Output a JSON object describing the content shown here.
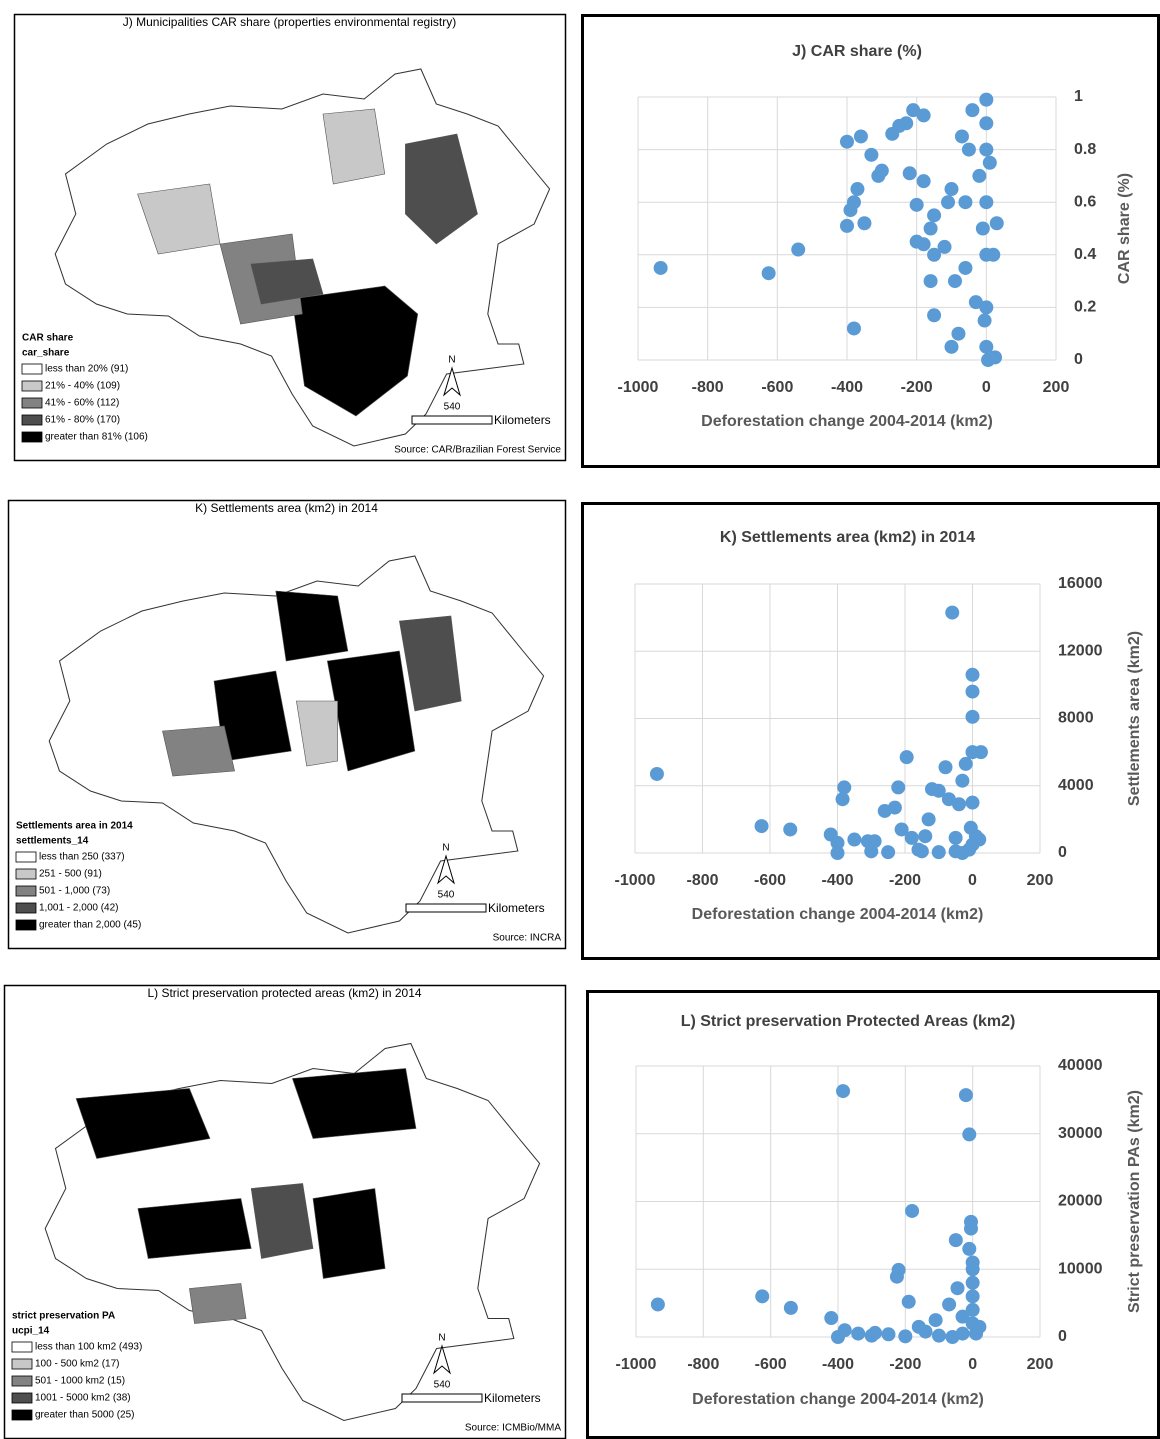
{
  "maps": [
    {
      "title": "J) Municipalities CAR share (properties environmental registry)",
      "legend_title": "CAR share",
      "legend_field": "car_share",
      "legend_items": [
        "less than 20% (91)",
        "21% - 40% (109)",
        "41% - 60% (112)",
        "61% - 80% (170)",
        "greater than 81% (106)"
      ],
      "north": "N",
      "scale": "540",
      "scale_unit": "Kilometers",
      "source": "Source: CAR/Brazilian Forest Service"
    },
    {
      "title": "K) Settlements area (km2) in 2014",
      "legend_title": "Settlements area in 2014",
      "legend_field": "settlements_14",
      "legend_items": [
        "less than 250 (337)",
        "251 - 500 (91)",
        "501 - 1,000 (73)",
        "1,001 - 2,000 (42)",
        "greater than 2,000 (45)"
      ],
      "north": "N",
      "scale": "540",
      "scale_unit": "Kilometers",
      "source": "Source: INCRA"
    },
    {
      "title": "L) Strict preservation protected areas (km2) in 2014",
      "legend_title": "strict preservation PA",
      "legend_field": "ucpi_14",
      "legend_items": [
        "less than 100 km2 (493)",
        "100 - 500 km2 (17)",
        "501 - 1000 km2 (15)",
        "1001 - 5000 km2 (38)",
        "greater than 5000 (25)"
      ],
      "north": "N",
      "scale": "540",
      "scale_unit": "Kilometers",
      "source": "Source: ICMBio/MMA"
    }
  ],
  "chart_data": [
    {
      "type": "scatter",
      "title": "J) CAR share (%)",
      "x_label": "Deforestation change 2004-2014 (km2)",
      "y_label": "CAR share (%)",
      "xlim": [
        -1000,
        200
      ],
      "xticks": [
        -1000,
        -800,
        -600,
        -400,
        -200,
        0,
        200
      ],
      "ylim": [
        0,
        1
      ],
      "yticks": [
        0,
        0.2,
        0.4,
        0.6,
        0.8,
        1
      ],
      "grid": true,
      "series": [
        {
          "color": "#5b9bd5",
          "x": [
            -935,
            -625,
            -540,
            -380,
            -400,
            -360,
            -330,
            -300,
            -370,
            -380,
            -390,
            -400,
            -350,
            -310,
            -270,
            -250,
            -230,
            -210,
            -180,
            -200,
            -200,
            -180,
            -160,
            -150,
            -220,
            -180,
            -160,
            -150,
            -150,
            -120,
            -110,
            -100,
            -90,
            -80,
            -100,
            -60,
            -50,
            -40,
            -30,
            -20,
            -10,
            0,
            0,
            0,
            0,
            0,
            0,
            0,
            5,
            10,
            20,
            30,
            25,
            -5,
            -60,
            -70
          ],
          "y": [
            0.35,
            0.33,
            0.42,
            0.12,
            0.83,
            0.85,
            0.78,
            0.72,
            0.65,
            0.6,
            0.57,
            0.51,
            0.52,
            0.7,
            0.86,
            0.89,
            0.9,
            0.95,
            0.93,
            0.59,
            0.45,
            0.44,
            0.5,
            0.55,
            0.71,
            0.68,
            0.3,
            0.4,
            0.17,
            0.43,
            0.6,
            0.65,
            0.3,
            0.1,
            0.05,
            0.35,
            0.8,
            0.95,
            0.22,
            0.7,
            0.5,
            0.99,
            0.9,
            0.8,
            0.6,
            0.4,
            0.2,
            0.05,
            0,
            0.75,
            0.4,
            0.52,
            0.01,
            0.15,
            0.6,
            0.85
          ]
        }
      ]
    },
    {
      "type": "scatter",
      "title": "K) Settlements area (km2) in 2014",
      "x_label": "Deforestation change 2004-2014 (km2)",
      "y_label": "Settlements area (km2)",
      "xlim": [
        -1000,
        200
      ],
      "xticks": [
        -1000,
        -800,
        -600,
        -400,
        -200,
        0,
        200
      ],
      "ylim": [
        0,
        16000
      ],
      "yticks": [
        0,
        4000,
        8000,
        12000,
        16000
      ],
      "grid": true,
      "series": [
        {
          "color": "#5b9bd5",
          "x": [
            -935,
            -625,
            -540,
            -420,
            -400,
            -380,
            -385,
            -350,
            -310,
            -290,
            -260,
            -230,
            -220,
            -210,
            -195,
            -180,
            -160,
            -140,
            -130,
            -120,
            -100,
            -80,
            -70,
            -60,
            -50,
            -40,
            -30,
            -20,
            -10,
            -5,
            0,
            0,
            0,
            0,
            0,
            0,
            10,
            25,
            20,
            -400,
            -300,
            -250,
            -150,
            -100,
            -50,
            -30
          ],
          "y": [
            4700,
            1600,
            1400,
            1100,
            600,
            3900,
            3200,
            800,
            700,
            700,
            2500,
            2700,
            3900,
            1400,
            5700,
            900,
            200,
            1000,
            2000,
            3800,
            3700,
            5100,
            3200,
            14300,
            900,
            2900,
            4300,
            5300,
            200,
            1500,
            10600,
            9600,
            8100,
            6000,
            3000,
            500,
            1000,
            6000,
            800,
            0,
            100,
            50,
            100,
            50,
            100,
            0
          ]
        }
      ]
    },
    {
      "type": "scatter",
      "title": "L) Strict preservation Protected Areas (km2)",
      "x_label": "Deforestation change 2004-2014 (km2)",
      "y_label": "Strict preservation PAs (km2)",
      "xlim": [
        -1000,
        200
      ],
      "xticks": [
        -1000,
        -800,
        -600,
        -400,
        -200,
        0,
        200
      ],
      "ylim": [
        0,
        40000
      ],
      "yticks": [
        0,
        10000,
        20000,
        30000,
        40000
      ],
      "grid": true,
      "series": [
        {
          "color": "#5b9bd5",
          "x": [
            -935,
            -625,
            -540,
            -420,
            -385,
            -380,
            -340,
            -290,
            -250,
            -220,
            -225,
            -190,
            -180,
            -160,
            -140,
            -110,
            -70,
            -50,
            -45,
            -30,
            -20,
            -10,
            -5,
            -5,
            -10,
            0,
            0,
            0,
            0,
            0,
            0,
            10,
            20,
            -400,
            -300,
            -200,
            -100,
            -60,
            -30
          ],
          "y": [
            4800,
            6000,
            4300,
            2800,
            36300,
            1000,
            500,
            600,
            400,
            9900,
            8900,
            5200,
            18600,
            1500,
            800,
            2500,
            4800,
            14300,
            7200,
            3000,
            35700,
            29900,
            17000,
            16000,
            13000,
            11000,
            10000,
            8000,
            6000,
            4000,
            2000,
            500,
            1500,
            0,
            200,
            100,
            200,
            0,
            500
          ]
        }
      ]
    }
  ]
}
